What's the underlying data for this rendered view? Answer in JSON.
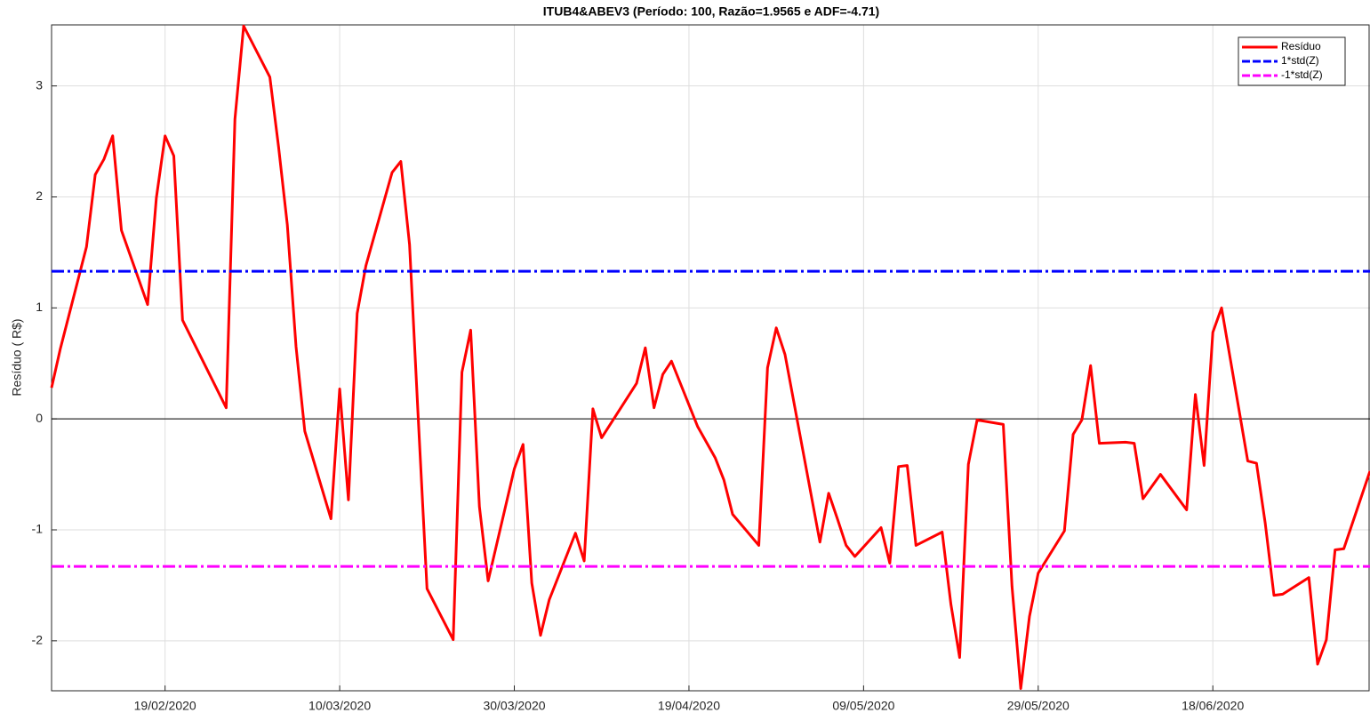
{
  "chart_data": {
    "type": "line",
    "title": "ITUB4&ABEV3 (Período: 100, Razão=1.9565 e ADF=-4.71)",
    "y_label": "Resíduo ( R$)",
    "x": [
      "2020-02-06",
      "2020-02-07",
      "2020-02-10",
      "2020-02-11",
      "2020-02-12",
      "2020-02-13",
      "2020-02-14",
      "2020-02-17",
      "2020-02-18",
      "2020-02-19",
      "2020-02-20",
      "2020-02-21",
      "2020-02-26",
      "2020-02-27",
      "2020-02-28",
      "2020-03-02",
      "2020-03-03",
      "2020-03-04",
      "2020-03-05",
      "2020-03-06",
      "2020-03-09",
      "2020-03-10",
      "2020-03-11",
      "2020-03-12",
      "2020-03-13",
      "2020-03-16",
      "2020-03-17",
      "2020-03-18",
      "2020-03-19",
      "2020-03-20",
      "2020-03-23",
      "2020-03-24",
      "2020-03-25",
      "2020-03-26",
      "2020-03-27",
      "2020-03-30",
      "2020-03-31",
      "2020-04-01",
      "2020-04-02",
      "2020-04-03",
      "2020-04-06",
      "2020-04-07",
      "2020-04-08",
      "2020-04-09",
      "2020-04-13",
      "2020-04-14",
      "2020-04-15",
      "2020-04-16",
      "2020-04-17",
      "2020-04-20",
      "2020-04-22",
      "2020-04-23",
      "2020-04-24",
      "2020-04-27",
      "2020-04-28",
      "2020-04-29",
      "2020-04-30",
      "2020-05-04",
      "2020-05-05",
      "2020-05-06",
      "2020-05-07",
      "2020-05-08",
      "2020-05-11",
      "2020-05-12",
      "2020-05-13",
      "2020-05-14",
      "2020-05-15",
      "2020-05-18",
      "2020-05-19",
      "2020-05-20",
      "2020-05-21",
      "2020-05-22",
      "2020-05-25",
      "2020-05-26",
      "2020-05-27",
      "2020-05-28",
      "2020-05-29",
      "2020-06-01",
      "2020-06-02",
      "2020-06-03",
      "2020-06-04",
      "2020-06-05",
      "2020-06-08",
      "2020-06-09",
      "2020-06-10",
      "2020-06-12",
      "2020-06-15",
      "2020-06-16",
      "2020-06-17",
      "2020-06-18",
      "2020-06-19",
      "2020-06-22",
      "2020-06-23",
      "2020-06-24",
      "2020-06-25",
      "2020-06-26",
      "2020-06-29",
      "2020-06-30",
      "2020-07-01",
      "2020-07-02",
      "2020-07-03",
      "2020-07-06"
    ],
    "series": [
      {
        "name": "Resíduo",
        "color": "#ff0000",
        "width": 3,
        "values": [
          0.28,
          0.63,
          1.55,
          2.2,
          2.34,
          2.55,
          1.7,
          1.03,
          1.99,
          2.55,
          2.37,
          0.89,
          0.1,
          2.7,
          3.54,
          3.08,
          2.45,
          1.75,
          0.65,
          -0.11,
          -0.9,
          0.27,
          -0.73,
          0.95,
          1.38,
          2.22,
          2.32,
          1.57,
          0.0,
          -1.53,
          -1.99,
          0.42,
          0.8,
          -0.79,
          -1.46,
          -0.45,
          -0.23,
          -1.48,
          -1.95,
          -1.63,
          -1.03,
          -1.28,
          0.09,
          -0.17,
          0.32,
          0.64,
          0.1,
          0.4,
          0.52,
          -0.07,
          -0.35,
          -0.55,
          -0.86,
          -1.14,
          0.46,
          0.82,
          0.58,
          -1.11,
          -0.67,
          -0.9,
          -1.14,
          -1.24,
          -0.98,
          -1.3,
          -0.43,
          -0.42,
          -1.14,
          -1.02,
          -1.67,
          -2.15,
          -0.41,
          -0.01,
          -0.05,
          -1.51,
          -2.43,
          -1.78,
          -1.39,
          -1.01,
          -0.14,
          -0.01,
          0.48,
          -0.22,
          -0.21,
          -0.22,
          -0.72,
          -0.5,
          -0.82,
          0.22,
          -0.42,
          0.78,
          1.0,
          -0.38,
          -0.4,
          -0.94,
          -1.59,
          -1.58,
          -1.43,
          -2.21,
          -1.99,
          -1.18,
          -1.17,
          -0.47
        ]
      },
      {
        "name": "1*std(Z)",
        "color": "#0000ff",
        "width": 3,
        "dash": "dashdot",
        "value": 1.33
      },
      {
        "name": "-1*std(Z)",
        "color": "#ff00ff",
        "width": 3,
        "dash": "dashdot",
        "value": -1.33
      }
    ],
    "xlim": [
      "2020-02-06",
      "2020-07-06"
    ],
    "xticks": [
      {
        "value": "2020-02-19",
        "label": "19/02/2020"
      },
      {
        "value": "2020-03-10",
        "label": "10/03/2020"
      },
      {
        "value": "2020-03-30",
        "label": "30/03/2020"
      },
      {
        "value": "2020-04-19",
        "label": "19/04/2020"
      },
      {
        "value": "2020-05-09",
        "label": "09/05/2020"
      },
      {
        "value": "2020-05-29",
        "label": "29/05/2020"
      },
      {
        "value": "2020-06-18",
        "label": "18/06/2020"
      }
    ],
    "ylim": [
      -2.45,
      3.55
    ],
    "yticks": [
      -2,
      -1,
      0,
      1,
      2,
      3
    ],
    "grid": true,
    "zero_line": true,
    "legend": "top-right"
  }
}
